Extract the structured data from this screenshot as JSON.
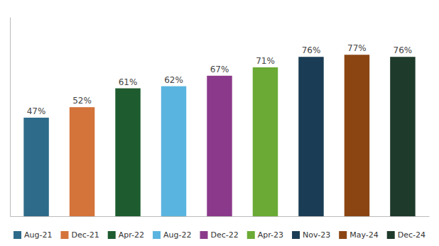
{
  "chart_data": {
    "type": "bar",
    "categories": [
      "Aug-21",
      "Dec-21",
      "Apr-22",
      "Aug-22",
      "Dec-22",
      "Apr-23",
      "Nov-23",
      "May-24",
      "Dec-24"
    ],
    "values": [
      47,
      52,
      61,
      62,
      67,
      71,
      76,
      77,
      76
    ],
    "value_labels": [
      "47%",
      "52%",
      "61%",
      "62%",
      "67%",
      "71%",
      "76%",
      "77%",
      "76%"
    ],
    "colors": [
      "#2e6b8a",
      "#d4733a",
      "#1e5c2f",
      "#5ab4e0",
      "#8b3a8b",
      "#6aaa35",
      "#1a3d55",
      "#8b4513",
      "#1e3a2a"
    ],
    "data_labels": true,
    "ylim": [
      0,
      95
    ],
    "tick_labels": false,
    "legend": "bottom"
  }
}
